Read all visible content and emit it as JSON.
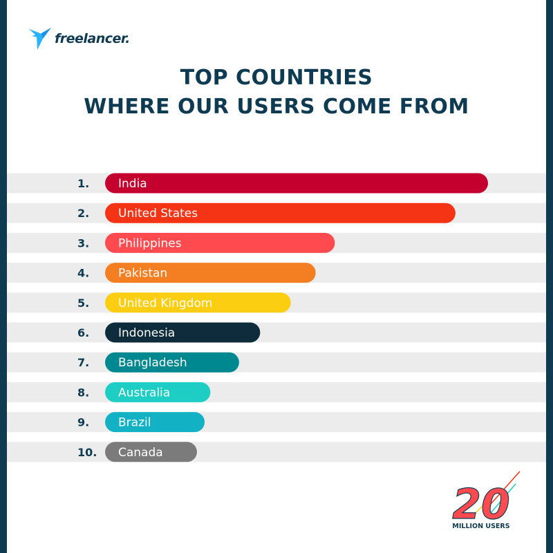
{
  "brand": {
    "logo_text": "freelancer."
  },
  "header": {
    "title_line1": "TOP COUNTRIES",
    "title_line2": "WHERE OUR USERS COME FROM"
  },
  "chart_data": {
    "type": "bar",
    "orientation": "horizontal",
    "title": "TOP COUNTRIES WHERE OUR USERS COME FROM",
    "xlabel": "",
    "ylabel": "",
    "ranks": [
      "1.",
      "2.",
      "3.",
      "4.",
      "5.",
      "6.",
      "7.",
      "8.",
      "9.",
      "10."
    ],
    "categories": [
      "India",
      "United States",
      "Philippines",
      "Pakistan",
      "United Kingdom",
      "Indonesia",
      "Bangladesh",
      "Australia",
      "Brazil",
      "Canada"
    ],
    "values": [
      100,
      91.5,
      60,
      55,
      48.5,
      40.5,
      35,
      27.5,
      26,
      24
    ],
    "values_note_unit": "relative bar length (India = 100)",
    "colors": [
      "#c4002f",
      "#f43415",
      "#ff4b4f",
      "#f47e22",
      "#fcce12",
      "#0f2c3c",
      "#008890",
      "#1ecdc4",
      "#12b2c4",
      "#7b7b7b"
    ],
    "grid": false,
    "legend": "none"
  },
  "badge": {
    "number": "20",
    "caption": "MILLION USERS"
  },
  "colors": {
    "navy": "#0e3a52",
    "band": "#ececec"
  }
}
